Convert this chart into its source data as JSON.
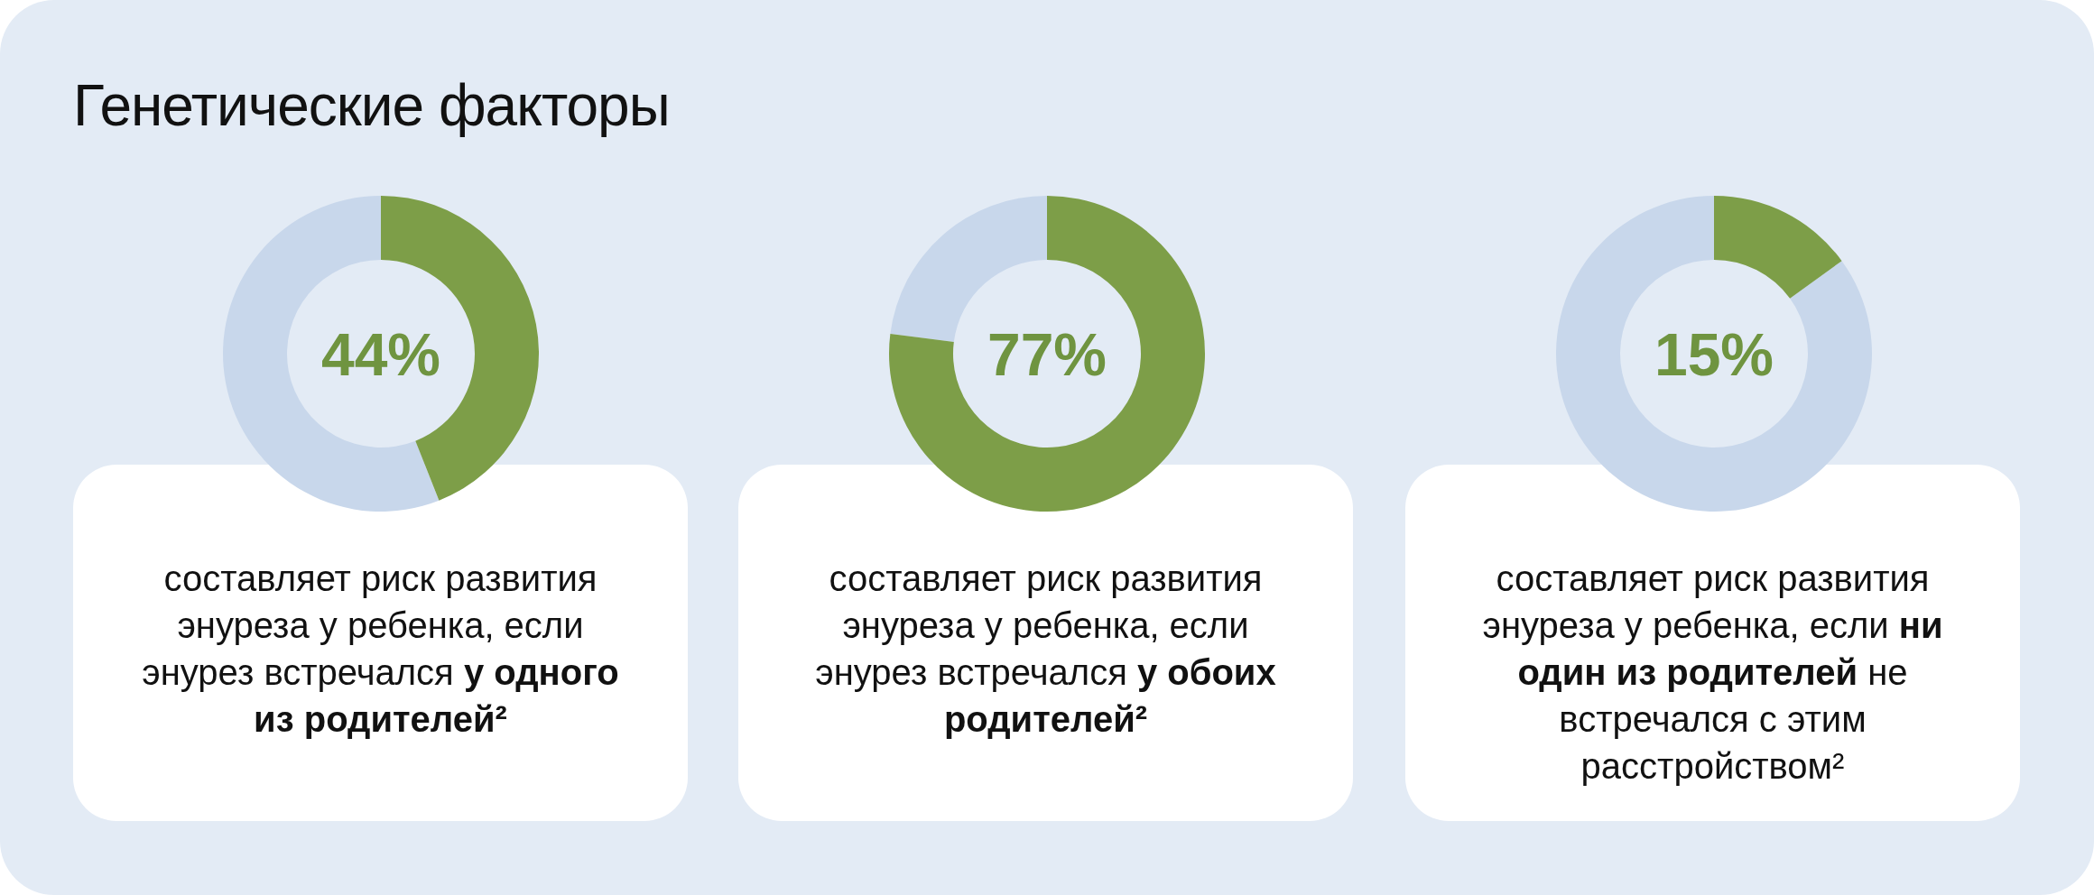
{
  "chart_data": [
    {
      "type": "donut",
      "title": "Генетические факторы",
      "categories": [
        null,
        null
      ],
      "values": [
        44,
        56
      ],
      "colors": [
        "#7d9e48",
        "#c8d7eb"
      ],
      "annotations": [
        "44%",
        "составляет риск развития энуреза у ребенка, если энурез встречался",
        "у одного из родителей²"
      ]
    },
    {
      "type": "donut",
      "categories": [
        null,
        null
      ],
      "values": [
        77,
        23
      ],
      "colors": [
        "#7d9e48",
        "#c8d7eb"
      ],
      "annotations": [
        "77%",
        "составляет риск развития энуреза у ребенка, если энурез встречался",
        "у обоих родителей²"
      ]
    },
    {
      "type": "donut",
      "categories": [
        null,
        null
      ],
      "values": [
        15,
        85
      ],
      "colors": [
        "#7d9e48",
        "#c8d7eb"
      ],
      "annotations": [
        "15%",
        "составляет риск развития энуреза у ребенка, если",
        "ни один из родителей",
        "не встречался с этим расстройством²"
      ]
    }
  ]
}
